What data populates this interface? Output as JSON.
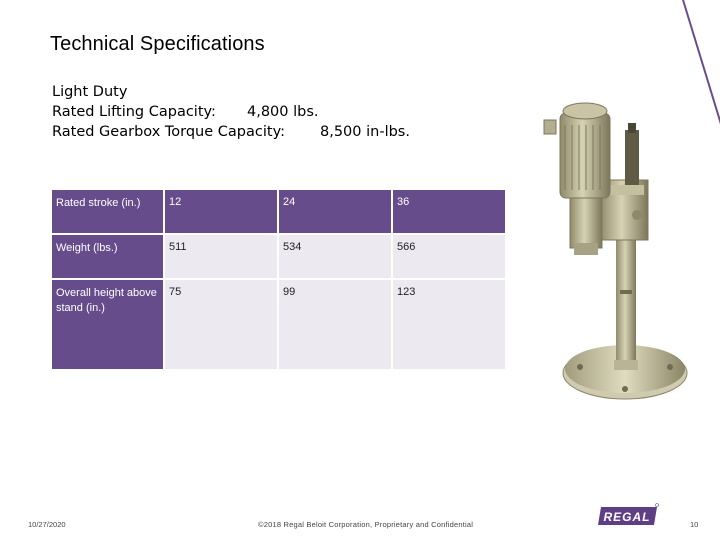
{
  "title": "Technical Specifications",
  "specs": {
    "heading": "Light Duty",
    "lifting_label": "Rated Lifting Capacity:",
    "lifting_value": "4,800 lbs.",
    "torque_label": "Rated Gearbox Torque Capacity:",
    "torque_value": "8,500 in-lbs."
  },
  "table": {
    "rows": [
      {
        "label": "Rated stroke (in.)",
        "values": [
          "12",
          "24",
          "36"
        ]
      },
      {
        "label": "Weight (lbs.)",
        "values": [
          "511",
          "534",
          "566"
        ]
      },
      {
        "label": "Overall height above stand (in.)",
        "values": [
          "75",
          "99",
          "123"
        ]
      }
    ]
  },
  "footer": {
    "date": "10/27/2020",
    "copyright": "©2018 Regal Beloit Corporation, Proprietary and Confidential",
    "page": "10",
    "logo_text": "REGAL"
  },
  "colors": {
    "accent": "#674c8c",
    "table_light": "#ece9f0"
  }
}
